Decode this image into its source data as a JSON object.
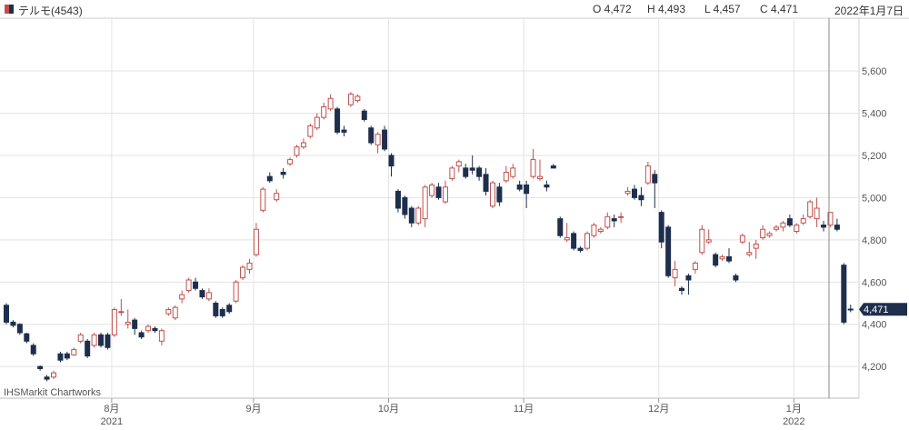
{
  "header": {
    "ticker": "テルモ(4543)",
    "open": "O 4,472",
    "high": "H 4,493",
    "low": "L 4,457",
    "close": "C 4,471",
    "date": "2022年1月7日"
  },
  "watermark": "IHSMarkit Chartworks",
  "colors": {
    "up": "#c0504d",
    "down": "#1e2f4d",
    "grid": "#e3e3e3",
    "badge": "#1e2f4d"
  },
  "chart_data": {
    "type": "candlestick",
    "ylim": [
      4050,
      5850
    ],
    "y_ticks": [
      "4,200",
      "4,400",
      "4,600",
      "4,800",
      "5,000",
      "5,200",
      "5,400",
      "5,600"
    ],
    "y_tick_values": [
      4200,
      4400,
      4600,
      4800,
      5000,
      5200,
      5400,
      5600
    ],
    "x_ticks": [
      {
        "label": "8月",
        "sub": "2021",
        "index": 16
      },
      {
        "label": "9月",
        "sub": "",
        "index": 37
      },
      {
        "label": "10月",
        "sub": "",
        "index": 57
      },
      {
        "label": "11月",
        "sub": "",
        "index": 77
      },
      {
        "label": "12月",
        "sub": "",
        "index": 97
      },
      {
        "label": "1月",
        "sub": "2022",
        "index": 117
      }
    ],
    "last_price_label": "4,471",
    "last_price": 4471,
    "candles": [
      [
        4490,
        4500,
        4400,
        4410
      ],
      [
        4410,
        4420,
        4385,
        4395
      ],
      [
        4400,
        4405,
        4350,
        4360
      ],
      [
        4355,
        4360,
        4310,
        4320
      ],
      [
        4300,
        4310,
        4250,
        4260
      ],
      [
        4200,
        4205,
        4180,
        4190
      ],
      [
        4150,
        4160,
        4130,
        4140
      ],
      [
        4150,
        4180,
        4140,
        4170
      ],
      [
        4260,
        4270,
        4220,
        4230
      ],
      [
        4260,
        4270,
        4230,
        4240
      ],
      [
        4255,
        4290,
        4250,
        4280
      ],
      [
        4320,
        4360,
        4310,
        4350
      ],
      [
        4320,
        4330,
        4240,
        4250
      ],
      [
        4300,
        4360,
        4290,
        4350
      ],
      [
        4350,
        4360,
        4290,
        4300
      ],
      [
        4350,
        4360,
        4280,
        4290
      ],
      [
        4350,
        4480,
        4340,
        4470
      ],
      [
        4460,
        4520,
        4440,
        4460
      ],
      [
        4400,
        4470,
        4380,
        4410
      ],
      [
        4420,
        4430,
        4350,
        4380
      ],
      [
        4360,
        4370,
        4330,
        4340
      ],
      [
        4370,
        4400,
        4360,
        4390
      ],
      [
        4380,
        4390,
        4360,
        4370
      ],
      [
        4320,
        4380,
        4300,
        4370
      ],
      [
        4450,
        4480,
        4440,
        4470
      ],
      [
        4430,
        4490,
        4420,
        4480
      ],
      [
        4520,
        4560,
        4500,
        4540
      ],
      [
        4560,
        4620,
        4550,
        4610
      ],
      [
        4600,
        4620,
        4560,
        4570
      ],
      [
        4560,
        4570,
        4520,
        4530
      ],
      [
        4520,
        4570,
        4510,
        4550
      ],
      [
        4500,
        4510,
        4430,
        4440
      ],
      [
        4470,
        4480,
        4430,
        4440
      ],
      [
        4490,
        4500,
        4450,
        4460
      ],
      [
        4510,
        4610,
        4500,
        4600
      ],
      [
        4620,
        4680,
        4610,
        4670
      ],
      [
        4660,
        4710,
        4640,
        4690
      ],
      [
        4730,
        4880,
        4720,
        4850
      ],
      [
        4940,
        5050,
        4930,
        5040
      ],
      [
        5100,
        5120,
        5070,
        5080
      ],
      [
        4990,
        5040,
        4980,
        5020
      ],
      [
        5120,
        5140,
        5090,
        5110
      ],
      [
        5160,
        5190,
        5150,
        5180
      ],
      [
        5200,
        5250,
        5190,
        5240
      ],
      [
        5240,
        5280,
        5230,
        5260
      ],
      [
        5290,
        5350,
        5280,
        5340
      ],
      [
        5330,
        5400,
        5320,
        5380
      ],
      [
        5380,
        5450,
        5370,
        5430
      ],
      [
        5420,
        5490,
        5410,
        5470
      ],
      [
        5420,
        5430,
        5300,
        5310
      ],
      [
        5320,
        5340,
        5290,
        5310
      ],
      [
        5440,
        5500,
        5430,
        5490
      ],
      [
        5460,
        5490,
        5450,
        5480
      ],
      [
        5410,
        5420,
        5360,
        5370
      ],
      [
        5330,
        5340,
        5250,
        5260
      ],
      [
        5250,
        5310,
        5210,
        5300
      ],
      [
        5320,
        5340,
        5220,
        5230
      ],
      [
        5200,
        5210,
        5100,
        5150
      ],
      [
        5030,
        5040,
        4930,
        4950
      ],
      [
        5000,
        5010,
        4900,
        4920
      ],
      [
        4950,
        4960,
        4860,
        4880
      ],
      [
        4880,
        4960,
        4870,
        4950
      ],
      [
        4900,
        5060,
        4860,
        5050
      ],
      [
        5010,
        5070,
        5000,
        5060
      ],
      [
        5050,
        5070,
        4990,
        5000
      ],
      [
        4980,
        5080,
        4970,
        5050
      ],
      [
        5090,
        5150,
        5080,
        5140
      ],
      [
        5150,
        5180,
        5120,
        5170
      ],
      [
        5140,
        5160,
        5090,
        5100
      ],
      [
        5140,
        5200,
        5110,
        5130
      ],
      [
        5140,
        5150,
        5080,
        5100
      ],
      [
        5110,
        5140,
        5010,
        5030
      ],
      [
        4960,
        5080,
        4950,
        5070
      ],
      [
        5050,
        5070,
        4960,
        4980
      ],
      [
        5080,
        5150,
        5070,
        5120
      ],
      [
        5100,
        5160,
        5090,
        5140
      ],
      [
        5060,
        5080,
        5030,
        5040
      ],
      [
        5060,
        5080,
        4950,
        5020
      ],
      [
        5100,
        5230,
        5090,
        5180
      ],
      [
        5090,
        5180,
        5080,
        5100
      ],
      [
        5060,
        5080,
        5030,
        5050
      ],
      [
        5150,
        5160,
        5140,
        5140
      ],
      [
        4900,
        4910,
        4810,
        4820
      ],
      [
        4800,
        4880,
        4790,
        4810
      ],
      [
        4830,
        4840,
        4750,
        4760
      ],
      [
        4760,
        4770,
        4740,
        4750
      ],
      [
        4760,
        4840,
        4750,
        4830
      ],
      [
        4820,
        4880,
        4810,
        4870
      ],
      [
        4840,
        4860,
        4830,
        4850
      ],
      [
        4860,
        4930,
        4850,
        4910
      ],
      [
        4900,
        4920,
        4860,
        4890
      ],
      [
        4910,
        4930,
        4880,
        4910
      ],
      [
        5020,
        5050,
        5010,
        5030
      ],
      [
        5040,
        5060,
        4990,
        5000
      ],
      [
        5010,
        5050,
        4960,
        4990
      ],
      [
        5070,
        5170,
        5060,
        5150
      ],
      [
        5110,
        5130,
        4950,
        5070
      ],
      [
        4930,
        4940,
        4760,
        4790
      ],
      [
        4860,
        4870,
        4620,
        4630
      ],
      [
        4620,
        4700,
        4580,
        4660
      ],
      [
        4570,
        4580,
        4540,
        4560
      ],
      [
        4630,
        4640,
        4540,
        4610
      ],
      [
        4660,
        4700,
        4640,
        4690
      ],
      [
        4740,
        4870,
        4730,
        4850
      ],
      [
        4790,
        4850,
        4780,
        4800
      ],
      [
        4730,
        4740,
        4670,
        4680
      ],
      [
        4710,
        4730,
        4700,
        4720
      ],
      [
        4720,
        4760,
        4690,
        4700
      ],
      [
        4630,
        4640,
        4600,
        4610
      ],
      [
        4790,
        4830,
        4780,
        4820
      ],
      [
        4730,
        4790,
        4720,
        4740
      ],
      [
        4760,
        4800,
        4710,
        4780
      ],
      [
        4810,
        4870,
        4800,
        4850
      ],
      [
        4820,
        4840,
        4810,
        4830
      ],
      [
        4850,
        4870,
        4840,
        4860
      ],
      [
        4860,
        4890,
        4840,
        4880
      ],
      [
        4900,
        4920,
        4860,
        4870
      ],
      [
        4840,
        4880,
        4830,
        4870
      ],
      [
        4880,
        4920,
        4870,
        4900
      ],
      [
        4910,
        4990,
        4900,
        4980
      ],
      [
        4900,
        5000,
        4860,
        4950
      ],
      [
        4870,
        4890,
        4840,
        4860
      ],
      [
        4870,
        4920,
        4860,
        4930
      ],
      [
        4870,
        4900,
        4840,
        4850
      ],
      [
        4680,
        4690,
        4400,
        4410
      ],
      [
        4472,
        4493,
        4457,
        4471
      ]
    ]
  }
}
